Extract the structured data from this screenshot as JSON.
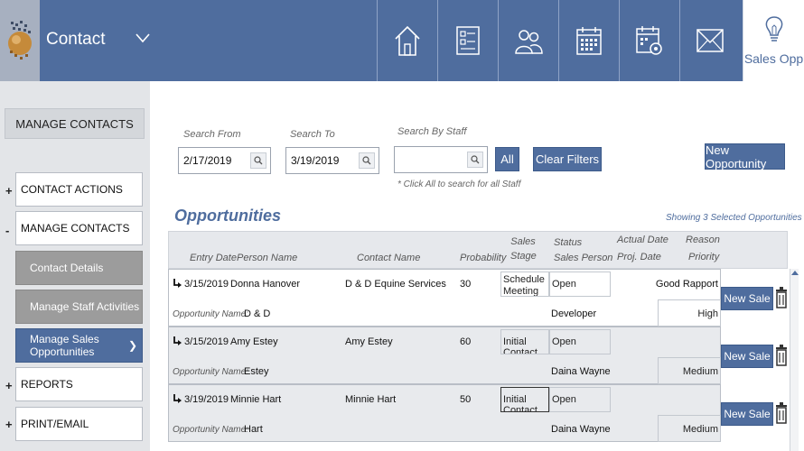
{
  "header": {
    "app_title": "Contact",
    "nav": [
      {
        "icon": "home-icon"
      },
      {
        "icon": "contact-card-icon"
      },
      {
        "icon": "people-icon"
      },
      {
        "icon": "calendar-icon"
      },
      {
        "icon": "calendar-settings-icon"
      },
      {
        "icon": "mail-icon"
      },
      {
        "icon": "lightbulb-icon",
        "label": "Sales Opp"
      }
    ]
  },
  "sidebar": {
    "heading": "MANAGE CONTACTS",
    "items": [
      {
        "sign": "+",
        "label": "CONTACT ACTIONS"
      },
      {
        "sign": "-",
        "label": "MANAGE CONTACTS"
      },
      {
        "label": "REPORTS",
        "sign": "+"
      },
      {
        "label": "PRINT/EMAIL",
        "sign": "+"
      }
    ],
    "subitems": [
      {
        "label": "Contact Details"
      },
      {
        "label": "Manage Staff Activities"
      },
      {
        "label": "Manage Sales Opportunities",
        "arrow": "❯"
      }
    ]
  },
  "filters": {
    "search_from_label": "Search From",
    "search_from_value": "2/17/2019",
    "search_to_label": "Search To",
    "search_to_value": "3/19/2019",
    "search_staff_label": "Search By Staff",
    "search_staff_value": "",
    "all_button": "All",
    "clear_button": "Clear Filters",
    "new_opportunity_button": "New Opportunity",
    "hint": "* Click All to search for all Staff"
  },
  "opportunities": {
    "title": "Opportunities",
    "showing": "Showing 3 Selected Opportunities",
    "columns": {
      "entry_date": "Entry Date",
      "person_name": "Person Name",
      "contact_name": "Contact Name",
      "probability": "Probability",
      "sales_stage": "Sales Stage",
      "status": "Status",
      "sales_person": "Sales Person",
      "actual_date": "Actual Date",
      "proj_date": "Proj. Date",
      "reason": "Reason",
      "priority": "Priority"
    },
    "opp_name_label": "Opportunity Name:",
    "new_sale_button": "New Sale",
    "rows": [
      {
        "entry_date": "3/15/2019",
        "person": "Donna Hanover",
        "contact": "D & D Equine Services",
        "probability": "30",
        "stage": "Schedule Meeting",
        "status": "Open",
        "reason": "Good Rapport",
        "opp_name": "D & D",
        "sales_person": "Developer",
        "priority": "High"
      },
      {
        "entry_date": "3/15/2019",
        "person": "Amy Estey",
        "contact": "Amy Estey",
        "probability": "60",
        "stage": "Initial Contact",
        "status": "Open",
        "reason": "",
        "opp_name": "Estey",
        "sales_person": "Daina Wayne",
        "priority": "Medium"
      },
      {
        "entry_date": "3/19/2019",
        "person": "Minnie Hart",
        "contact": "Minnie Hart",
        "probability": "50",
        "stage": "Initial Contact",
        "status": "Open",
        "reason": "",
        "opp_name": "Hart",
        "sales_person": "Daina Wayne",
        "priority": "Medium"
      }
    ]
  }
}
